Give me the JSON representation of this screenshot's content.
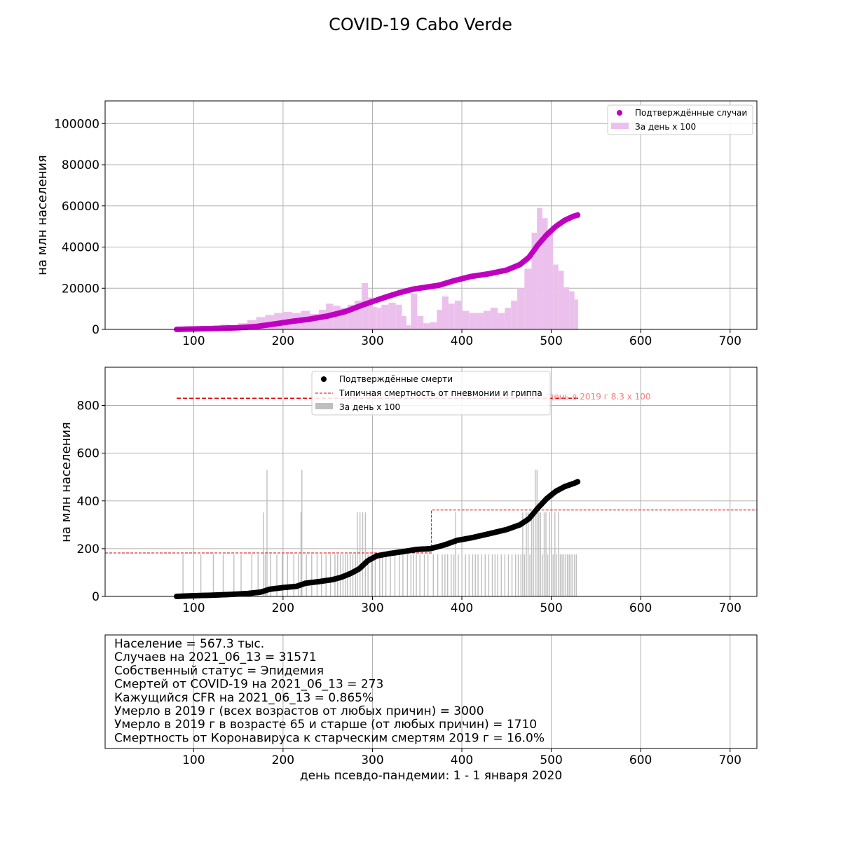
{
  "figure": {
    "title": "COVID-19 Cabo Verde",
    "xlabel": "день псевдо-пандемии: 1 - 1 января 2020",
    "colors": {
      "cases_markers": "#c000c0",
      "cases_bars": "#ecc0ec",
      "deaths_markers": "#000000",
      "deaths_bars": "#bfbfbf",
      "typical_line": "#dd0000",
      "annotation": "#f08080",
      "grid": "#b0b0b0"
    }
  },
  "chart_data": [
    {
      "type": "scatter+bar",
      "ylabel": "на млн населения",
      "xlim": [
        1,
        730
      ],
      "ylim": [
        0,
        111000
      ],
      "xticks": [
        100,
        200,
        300,
        400,
        500,
        600,
        700
      ],
      "yticks": [
        0,
        20000,
        40000,
        60000,
        80000,
        100000
      ],
      "grid": true,
      "legend_position": "top-right",
      "legend": [
        "Подтверждённые случаи",
        "За день x 100"
      ],
      "series": [
        {
          "name": "Подтверждённые случаи",
          "kind": "cumulative-markers",
          "points": [
            [
              81,
              0
            ],
            [
              100,
              200
            ],
            [
              120,
              400
            ],
            [
              150,
              800
            ],
            [
              170,
              1400
            ],
            [
              190,
              2600
            ],
            [
              210,
              3900
            ],
            [
              230,
              5000
            ],
            [
              250,
              6500
            ],
            [
              270,
              8700
            ],
            [
              290,
              12000
            ],
            [
              310,
              15000
            ],
            [
              330,
              17800
            ],
            [
              345,
              19500
            ],
            [
              360,
              20500
            ],
            [
              375,
              21500
            ],
            [
              390,
              23500
            ],
            [
              410,
              25700
            ],
            [
              430,
              27000
            ],
            [
              450,
              28800
            ],
            [
              465,
              31500
            ],
            [
              475,
              35000
            ],
            [
              485,
              41000
            ],
            [
              495,
              46000
            ],
            [
              505,
              50000
            ],
            [
              515,
              53000
            ],
            [
              525,
              55000
            ],
            [
              530,
              55600
            ]
          ]
        },
        {
          "name": "За день x 100",
          "kind": "daily-bars",
          "points": [
            [
              81,
              0
            ],
            [
              90,
              300
            ],
            [
              100,
              600
            ],
            [
              110,
              1200
            ],
            [
              120,
              1800
            ],
            [
              130,
              2400
            ],
            [
              140,
              2000
            ],
            [
              150,
              3000
            ],
            [
              160,
              4500
            ],
            [
              170,
              6000
            ],
            [
              180,
              7000
            ],
            [
              190,
              8000
            ],
            [
              200,
              8500
            ],
            [
              210,
              8000
            ],
            [
              220,
              9000
            ],
            [
              230,
              7500
            ],
            [
              240,
              9500
            ],
            [
              248,
              12500
            ],
            [
              256,
              11500
            ],
            [
              264,
              10500
            ],
            [
              272,
              12000
            ],
            [
              280,
              14000
            ],
            [
              288,
              22500
            ],
            [
              295,
              15500
            ],
            [
              300,
              11000
            ],
            [
              305,
              10500
            ],
            [
              310,
              12000
            ],
            [
              318,
              13000
            ],
            [
              326,
              12000
            ],
            [
              333,
              6500
            ],
            [
              338,
              2000
            ],
            [
              343,
              17500
            ],
            [
              350,
              6500
            ],
            [
              357,
              3000
            ],
            [
              364,
              3500
            ],
            [
              372,
              9500
            ],
            [
              378,
              16000
            ],
            [
              385,
              12500
            ],
            [
              392,
              14000
            ],
            [
              400,
              9000
            ],
            [
              408,
              8000
            ],
            [
              416,
              8000
            ],
            [
              424,
              9000
            ],
            [
              432,
              10500
            ],
            [
              440,
              8000
            ],
            [
              448,
              10500
            ],
            [
              455,
              14000
            ],
            [
              462,
              20000
            ],
            [
              470,
              29500
            ],
            [
              478,
              47000
            ],
            [
              484,
              59000
            ],
            [
              490,
              54000
            ],
            [
              496,
              48000
            ],
            [
              502,
              31500
            ],
            [
              508,
              28500
            ],
            [
              514,
              20500
            ],
            [
              520,
              18500
            ],
            [
              526,
              14500
            ]
          ]
        }
      ]
    },
    {
      "type": "scatter+bar+line",
      "ylabel": "на млн населения",
      "xlim": [
        1,
        730
      ],
      "ylim": [
        0,
        960
      ],
      "xticks": [
        100,
        200,
        300,
        400,
        500,
        600,
        700
      ],
      "yticks": [
        0,
        200,
        400,
        600,
        800
      ],
      "grid": true,
      "legend_position": "top-center",
      "legend": [
        "Подтверждённые смерти",
        "Типичная смертность от пневмонии и гриппа",
        "За день x 100"
      ],
      "annotation": "день в 2019 г 8.3 x 100",
      "series": [
        {
          "name": "Подтверждённые смерти",
          "kind": "cumulative-markers",
          "points": [
            [
              81,
              0
            ],
            [
              100,
              3
            ],
            [
              120,
              5
            ],
            [
              140,
              8
            ],
            [
              160,
              12
            ],
            [
              175,
              18
            ],
            [
              185,
              30
            ],
            [
              200,
              37
            ],
            [
              215,
              42
            ],
            [
              225,
              55
            ],
            [
              240,
              62
            ],
            [
              255,
              70
            ],
            [
              265,
              80
            ],
            [
              275,
              95
            ],
            [
              285,
              115
            ],
            [
              295,
              150
            ],
            [
              305,
              170
            ],
            [
              320,
              180
            ],
            [
              335,
              188
            ],
            [
              350,
              197
            ],
            [
              365,
              200
            ],
            [
              380,
              215
            ],
            [
              395,
              235
            ],
            [
              410,
              245
            ],
            [
              430,
              262
            ],
            [
              450,
              280
            ],
            [
              465,
              300
            ],
            [
              475,
              325
            ],
            [
              485,
              370
            ],
            [
              495,
              410
            ],
            [
              505,
              440
            ],
            [
              515,
              460
            ],
            [
              525,
              473
            ],
            [
              530,
              481
            ]
          ]
        },
        {
          "name": "Типичная смертность от пневмонии и гриппа",
          "kind": "step-line",
          "points": [
            [
              1,
              182
            ],
            [
              366,
              182
            ],
            [
              366,
              362
            ],
            [
              730,
              362
            ]
          ]
        },
        {
          "name": "Типичная смертность от пневмонии и гриппа (день в 2019 г 8.3 x 100)",
          "kind": "dashed-line",
          "points": [
            [
              81,
              830
            ],
            [
              530,
              830
            ]
          ]
        },
        {
          "name": "За день x 100",
          "kind": "daily-bars",
          "points": [
            [
              88,
              176
            ],
            [
              108,
              176
            ],
            [
              122,
              176
            ],
            [
              133,
              176
            ],
            [
              145,
              176
            ],
            [
              153,
              176
            ],
            [
              165,
              176
            ],
            [
              172,
              176
            ],
            [
              178,
              352
            ],
            [
              180,
              176
            ],
            [
              182,
              530
            ],
            [
              186,
              176
            ],
            [
              193,
              176
            ],
            [
              199,
              176
            ],
            [
              205,
              176
            ],
            [
              212,
              176
            ],
            [
              217,
              176
            ],
            [
              220,
              352
            ],
            [
              221,
              530
            ],
            [
              226,
              176
            ],
            [
              232,
              176
            ],
            [
              238,
              176
            ],
            [
              243,
              176
            ],
            [
              248,
              176
            ],
            [
              253,
              176
            ],
            [
              258,
              176
            ],
            [
              261,
              176
            ],
            [
              264,
              176
            ],
            [
              267,
              176
            ],
            [
              270,
              176
            ],
            [
              272,
              176
            ],
            [
              275,
              176
            ],
            [
              278,
              176
            ],
            [
              281,
              176
            ],
            [
              283,
              352
            ],
            [
              286,
              352
            ],
            [
              289,
              352
            ],
            [
              292,
              352
            ],
            [
              295,
              176
            ],
            [
              299,
              176
            ],
            [
              303,
              176
            ],
            [
              308,
              176
            ],
            [
              311,
              176
            ],
            [
              315,
              176
            ],
            [
              320,
              176
            ],
            [
              325,
              176
            ],
            [
              330,
              176
            ],
            [
              334,
              176
            ],
            [
              339,
              176
            ],
            [
              343,
              176
            ],
            [
              346,
              176
            ],
            [
              349,
              176
            ],
            [
              353,
              176
            ],
            [
              358,
              176
            ],
            [
              362,
              176
            ],
            [
              368,
              176
            ],
            [
              373,
              176
            ],
            [
              378,
              176
            ],
            [
              381,
              176
            ],
            [
              384,
              176
            ],
            [
              388,
              176
            ],
            [
              391,
              176
            ],
            [
              393,
              352
            ],
            [
              396,
              176
            ],
            [
              400,
              176
            ],
            [
              404,
              176
            ],
            [
              408,
              176
            ],
            [
              412,
              176
            ],
            [
              415,
              176
            ],
            [
              418,
              176
            ],
            [
              422,
              176
            ],
            [
              426,
              176
            ],
            [
              430,
              176
            ],
            [
              434,
              176
            ],
            [
              437,
              176
            ],
            [
              440,
              176
            ],
            [
              444,
              176
            ],
            [
              448,
              176
            ],
            [
              452,
              176
            ],
            [
              456,
              176
            ],
            [
              460,
              176
            ],
            [
              463,
              176
            ],
            [
              466,
              176
            ],
            [
              468,
              352
            ],
            [
              470,
              176
            ],
            [
              472,
              352
            ],
            [
              474,
              352
            ],
            [
              476,
              176
            ],
            [
              478,
              352
            ],
            [
              480,
              352
            ],
            [
              482,
              530
            ],
            [
              484,
              530
            ],
            [
              486,
              352
            ],
            [
              488,
              352
            ],
            [
              490,
              176
            ],
            [
              492,
              352
            ],
            [
              494,
              352
            ],
            [
              496,
              176
            ],
            [
              498,
              352
            ],
            [
              500,
              352
            ],
            [
              502,
              176
            ],
            [
              504,
              352
            ],
            [
              506,
              176
            ],
            [
              508,
              352
            ],
            [
              510,
              176
            ],
            [
              512,
              176
            ],
            [
              514,
              176
            ],
            [
              516,
              176
            ],
            [
              518,
              176
            ],
            [
              520,
              176
            ],
            [
              522,
              176
            ],
            [
              524,
              176
            ],
            [
              526,
              176
            ],
            [
              528,
              176
            ]
          ]
        }
      ]
    }
  ],
  "info_panel": {
    "lines": [
      "Население = 567.3 тыс.",
      "Случаев на 2021_06_13 = 31571",
      "Собственный статус = Эпидемия",
      "Смертей от COVID-19 на 2021_06_13 = 273",
      "Кажущийся CFR на 2021_06_13 = 0.865%",
      "Умерло в 2019 г (всех возрастов от любых причин) = 3000",
      "Умерло в 2019 г в возрасте 65 и старше (от любых причин) = 1710",
      "Смертность от Коронавируса к старческим смертям 2019 г = 16.0%"
    ],
    "xticks": [
      100,
      200,
      300,
      400,
      500,
      600,
      700
    ]
  }
}
